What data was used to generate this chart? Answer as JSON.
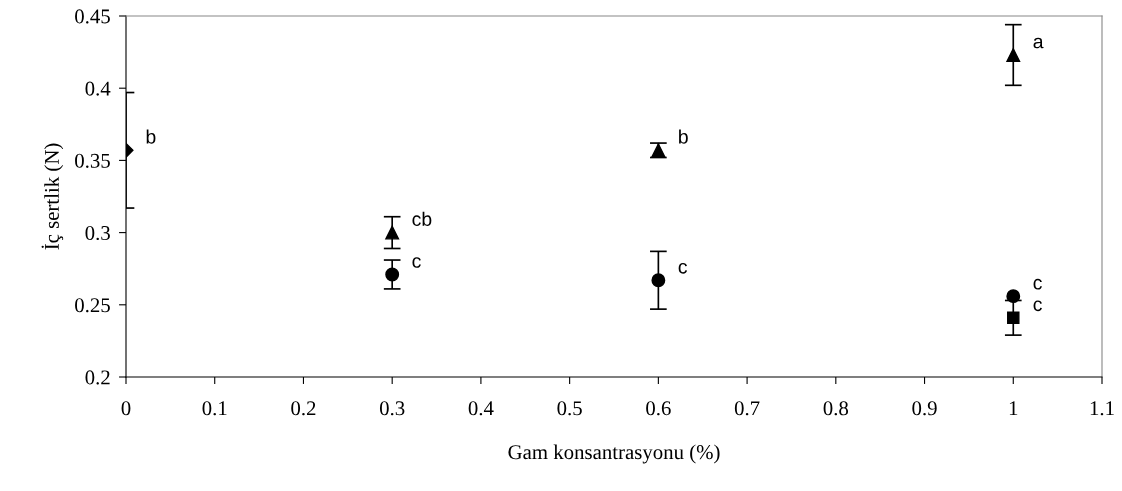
{
  "chart_data": {
    "type": "scatter",
    "xlabel": "Gam konsantrasyonu (%)",
    "ylabel": "İç sertlik (N)",
    "xlim": [
      0,
      1.1
    ],
    "xticks": [
      0,
      0.1,
      0.2,
      0.3,
      0.4,
      0.5,
      0.6,
      0.7,
      0.8,
      0.9,
      1,
      1.1
    ],
    "ylim": [
      0.2,
      0.45
    ],
    "yticks": [
      0.2,
      0.25,
      0.3,
      0.35,
      0.4,
      0.45
    ],
    "grid": false,
    "legend": false,
    "series": [
      {
        "marker": "diamond",
        "color": "#000000",
        "x": [
          0
        ],
        "values": [
          0.357
        ],
        "errors": [
          0.04
        ]
      },
      {
        "marker": "triangle",
        "color": "#000000",
        "x": [
          0.3,
          0.6,
          1
        ],
        "values": [
          0.3,
          0.357,
          0.423
        ],
        "errors": [
          0.011,
          0.005,
          0.021
        ]
      },
      {
        "marker": "circle",
        "color": "#000000",
        "x": [
          0.3,
          0.6,
          1
        ],
        "values": [
          0.271,
          0.267,
          0.256
        ],
        "errors": [
          0.01,
          0.02,
          null
        ]
      },
      {
        "marker": "square",
        "color": "#000000",
        "x": [
          1
        ],
        "values": [
          0.241
        ],
        "errors": [
          0.012
        ]
      }
    ],
    "annotations": [
      {
        "text": "b",
        "x": 0,
        "y": 0.357
      },
      {
        "text": "cb",
        "x": 0.3,
        "y": 0.3
      },
      {
        "text": "c",
        "x": 0.3,
        "y": 0.271
      },
      {
        "text": "b",
        "x": 0.6,
        "y": 0.357
      },
      {
        "text": "c",
        "x": 0.6,
        "y": 0.267
      },
      {
        "text": "a",
        "x": 1,
        "y": 0.423
      },
      {
        "text": "c",
        "x": 1,
        "y": 0.256
      },
      {
        "text": "c",
        "x": 1,
        "y": 0.241
      }
    ]
  }
}
